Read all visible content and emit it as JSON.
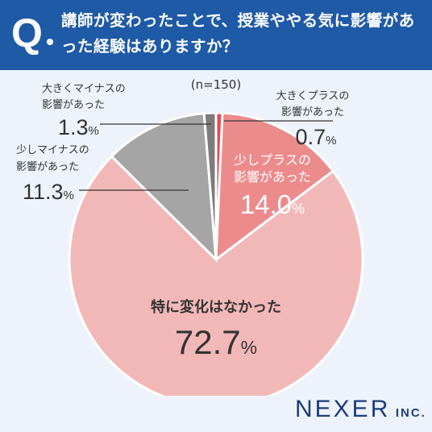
{
  "header": {
    "q_label": "Q",
    "question": "講師が変わったことで、授業ややる気に影響があった経験はありますか？"
  },
  "brand": {
    "name": "NEXER",
    "suffix": "INC."
  },
  "chart_data": {
    "type": "pie",
    "note": "(n=150)",
    "unit": "%",
    "slices": [
      {
        "label": "大きくプラスの影響があった",
        "value": 0.7,
        "color": "#e34b53"
      },
      {
        "label": "少しプラスの影響があった",
        "value": 14.0,
        "color": "#ec8b8c"
      },
      {
        "label": "特に変化はなかった",
        "value": 72.7,
        "color": "#f2b8b7"
      },
      {
        "label": "少しマイナスの影響があった",
        "value": 11.3,
        "color": "#a5a5a5"
      },
      {
        "label": "大きくマイナスの影響があった",
        "value": 1.3,
        "color": "#7c7c7c"
      }
    ]
  }
}
